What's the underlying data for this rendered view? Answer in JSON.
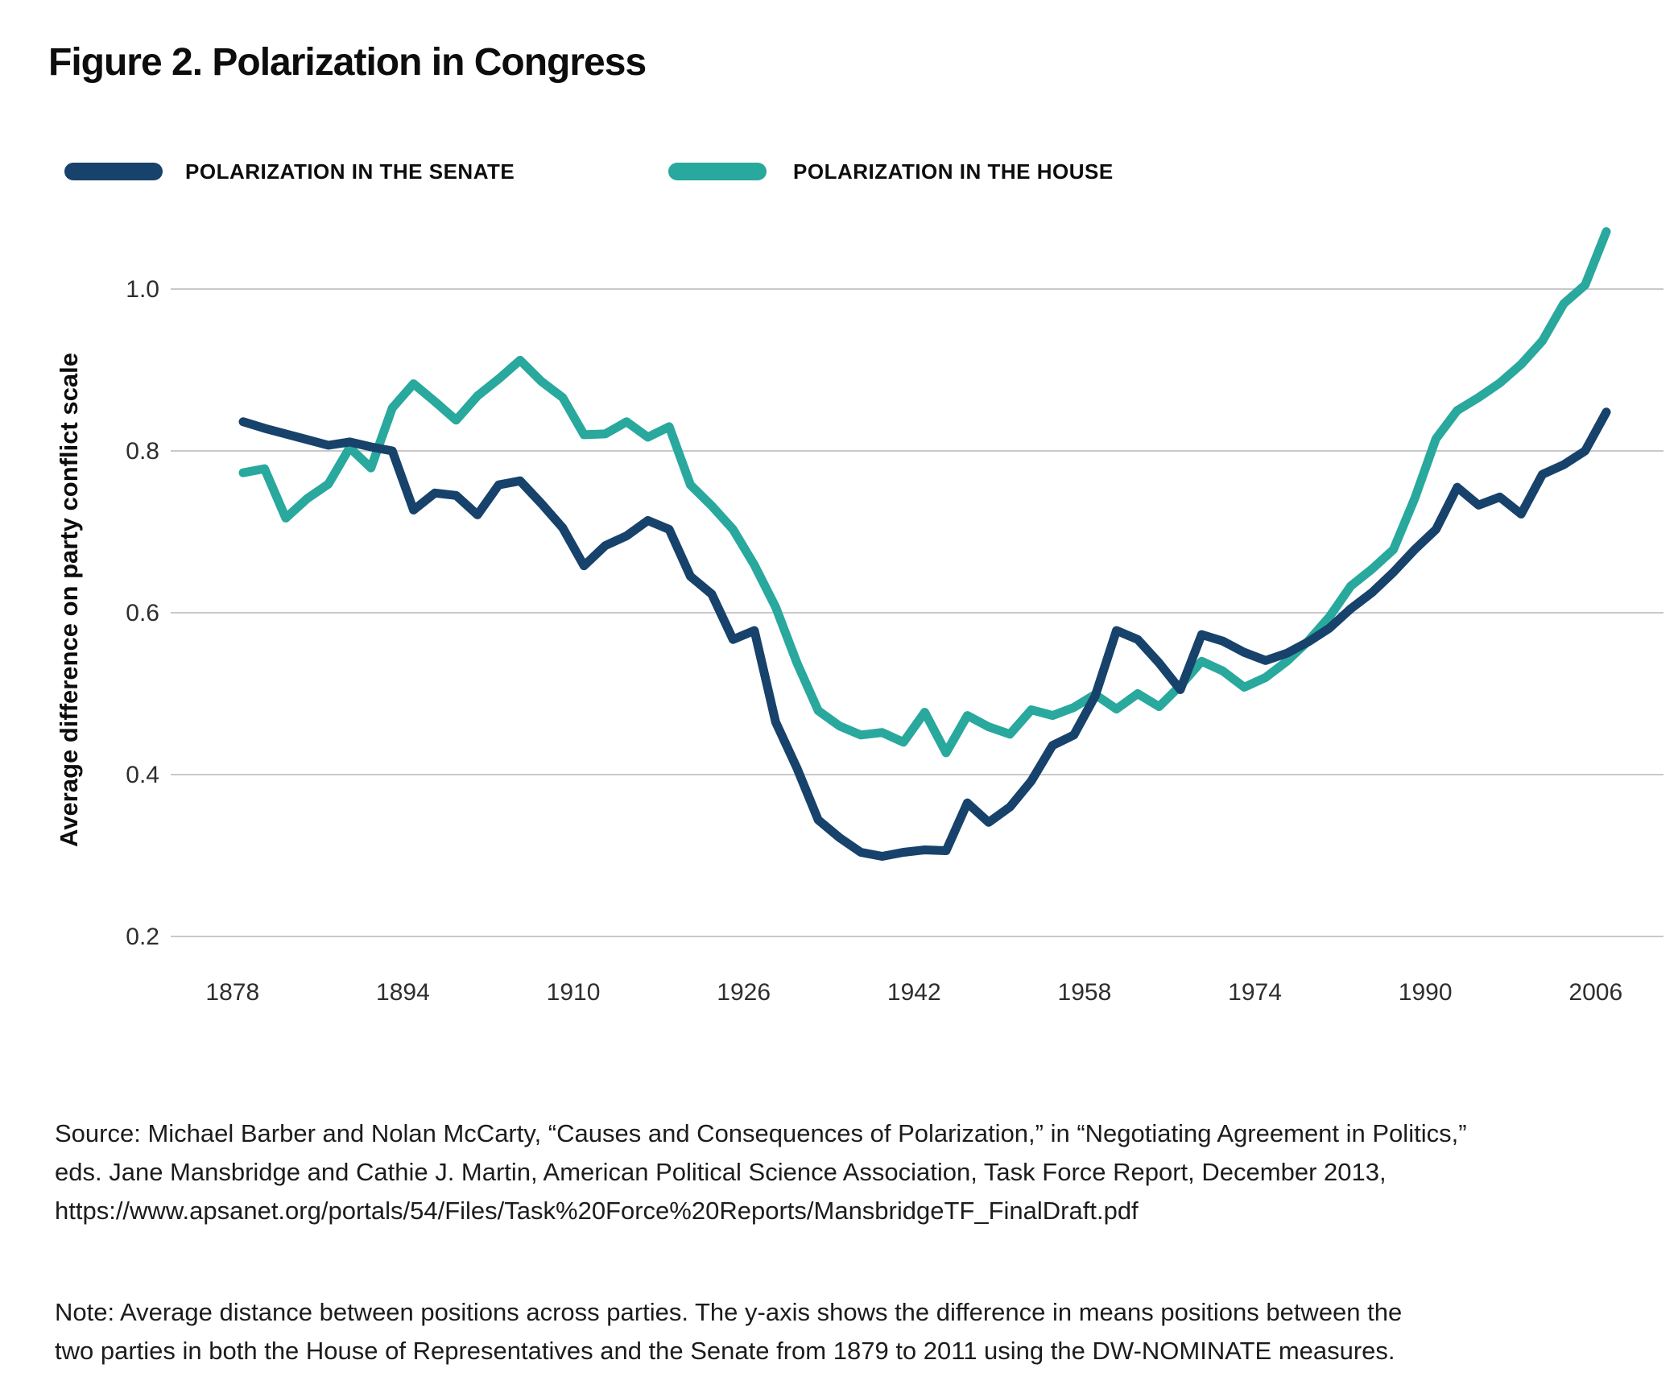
{
  "title": "Figure 2. Polarization in Congress",
  "legend": {
    "senate": {
      "label": "POLARIZATION IN THE SENATE",
      "color": "#17426B"
    },
    "house": {
      "label": "POLARIZATION IN THE HOUSE",
      "color": "#29A89D"
    }
  },
  "colors": {
    "senate_line": "#17426B",
    "house_line": "#29A89D",
    "gridline": "#c9c9c9",
    "tick_text": "#2e2e2e",
    "axis_label_text": "#0d0d0d"
  },
  "chart_data": {
    "type": "line",
    "title": "Figure 2. Polarization in Congress",
    "xlabel": "",
    "ylabel": "Average difference on party conflict scale",
    "grid": "horizontal-only",
    "legend_position": "top-left",
    "ylim": [
      0.13,
      1.1
    ],
    "yticks": [
      1.0,
      0.8,
      0.6,
      0.4,
      0.2
    ],
    "ytick_labels": [
      "1.0",
      "0.8",
      "0.6",
      "0.4",
      "0.2"
    ],
    "xticks": [
      1878,
      1894,
      1910,
      1926,
      1942,
      1958,
      1974,
      1990,
      2006
    ],
    "x": [
      1879,
      1881,
      1883,
      1885,
      1887,
      1889,
      1891,
      1893,
      1895,
      1897,
      1899,
      1901,
      1903,
      1905,
      1907,
      1909,
      1911,
      1913,
      1915,
      1917,
      1919,
      1921,
      1923,
      1925,
      1927,
      1929,
      1931,
      1933,
      1935,
      1937,
      1939,
      1941,
      1943,
      1945,
      1947,
      1949,
      1951,
      1953,
      1955,
      1957,
      1959,
      1961,
      1963,
      1965,
      1967,
      1969,
      1971,
      1973,
      1975,
      1977,
      1979,
      1981,
      1983,
      1985,
      1987,
      1989,
      1991,
      1993,
      1995,
      1997,
      1999,
      2001,
      2003,
      2005,
      2007
    ],
    "series": [
      {
        "name": "POLARIZATION IN THE HOUSE",
        "color": "#29A89D",
        "values": [
          0.773,
          0.778,
          0.717,
          0.741,
          0.759,
          0.804,
          0.779,
          0.853,
          0.883,
          0.861,
          0.838,
          0.868,
          0.889,
          0.912,
          0.886,
          0.866,
          0.82,
          0.821,
          0.836,
          0.817,
          0.83,
          0.758,
          0.732,
          0.703,
          0.659,
          0.607,
          0.538,
          0.479,
          0.46,
          0.449,
          0.452,
          0.44,
          0.477,
          0.427,
          0.473,
          0.459,
          0.45,
          0.48,
          0.473,
          0.483,
          0.499,
          0.481,
          0.5,
          0.484,
          0.51,
          0.54,
          0.528,
          0.508,
          0.52,
          0.54,
          0.565,
          0.595,
          0.633,
          0.654,
          0.678,
          0.741,
          0.815,
          0.85,
          0.866,
          0.884,
          0.907,
          0.936,
          0.982,
          1.005,
          1.071
        ]
      },
      {
        "name": "POLARIZATION IN THE SENATE",
        "color": "#17426B",
        "values": [
          0.836,
          0.828,
          0.821,
          0.814,
          0.807,
          0.811,
          0.805,
          0.8,
          0.727,
          0.748,
          0.745,
          0.721,
          0.758,
          0.763,
          0.735,
          0.705,
          0.658,
          0.683,
          0.695,
          0.714,
          0.703,
          0.645,
          0.623,
          0.567,
          0.578,
          0.465,
          0.408,
          0.344,
          0.322,
          0.304,
          0.299,
          0.304,
          0.307,
          0.306,
          0.365,
          0.341,
          0.36,
          0.392,
          0.436,
          0.449,
          0.497,
          0.578,
          0.567,
          0.538,
          0.505,
          0.573,
          0.565,
          0.551,
          0.541,
          0.55,
          0.564,
          0.581,
          0.605,
          0.625,
          0.65,
          0.678,
          0.703,
          0.755,
          0.733,
          0.743,
          0.722,
          0.771,
          0.783,
          0.8,
          0.848
        ]
      }
    ]
  },
  "source": {
    "lines": [
      "Source: Michael Barber and Nolan McCarty, “Causes and Consequences of Polarization,” in “Negotiating Agreement in Politics,”",
      "eds. Jane Mansbridge and Cathie J. Martin, American Political Science Association, Task Force Report, December 2013,",
      "https://www.apsanet.org/portals/54/Files/Task%20Force%20Reports/MansbridgeTF_FinalDraft.pdf"
    ]
  },
  "note": {
    "lines": [
      "Note: Average distance between positions across parties. The y-axis shows the difference in means positions between the",
      "two parties in both the House of Representatives and the Senate from 1879 to 2011 using the DW-NOMINATE measures."
    ]
  }
}
